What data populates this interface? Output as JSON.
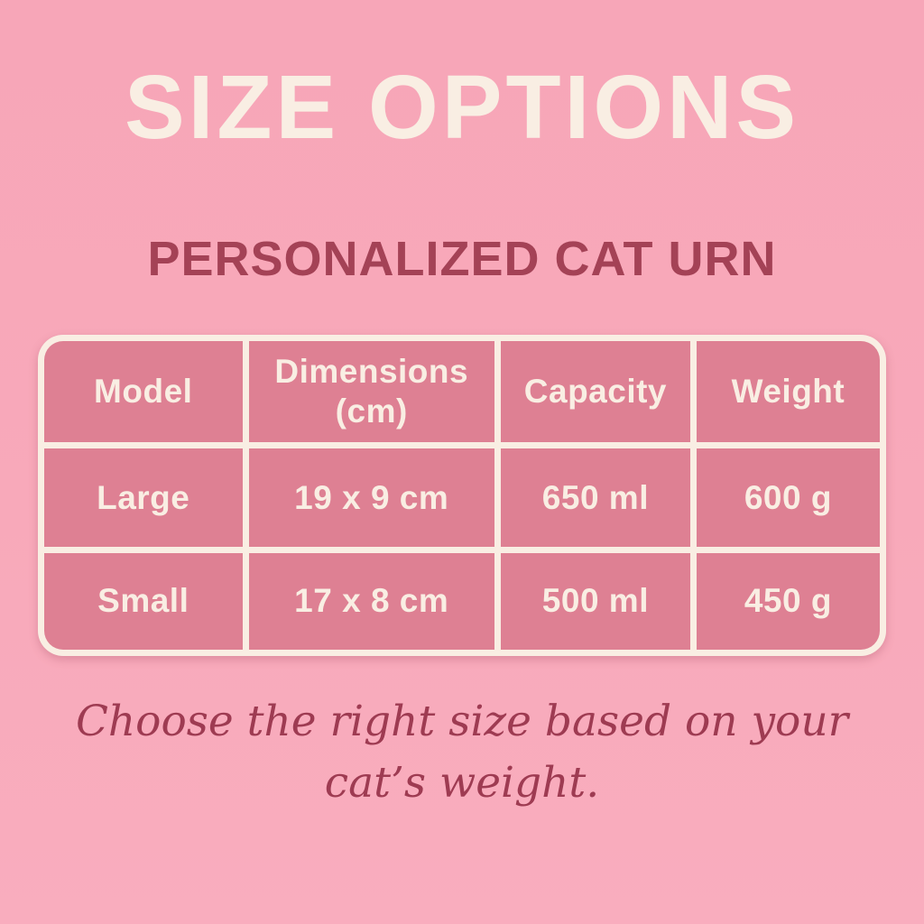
{
  "page": {
    "title": "SIZE OPTIONS",
    "subtitle": "PERSONALIZED CAT URN",
    "caption_line1": "Choose the right size based on your",
    "caption_line2": "cat’s weight."
  },
  "table": {
    "columns": [
      {
        "label": "Model",
        "sub": ""
      },
      {
        "label": "Dimensions",
        "sub": "(cm)"
      },
      {
        "label": "Capacity",
        "sub": ""
      },
      {
        "label": "Weight",
        "sub": ""
      }
    ],
    "rows": [
      [
        "Large",
        "19 x 9 cm",
        "650 ml",
        "600 g"
      ],
      [
        "Small",
        "17 x 8 cm",
        "500 ml",
        "450 g"
      ]
    ]
  },
  "chart_data": {
    "type": "table",
    "title": "SIZE OPTIONS",
    "subtitle": "PERSONALIZED CAT URN",
    "columns": [
      "Model",
      "Dimensions (cm)",
      "Capacity",
      "Weight"
    ],
    "rows": [
      {
        "model": "Large",
        "dimensions_cm": "19 x 9 cm",
        "capacity_ml": 650,
        "weight_g": 600
      },
      {
        "model": "Small",
        "dimensions_cm": "17 x 8 cm",
        "capacity_ml": 500,
        "weight_g": 450
      }
    ],
    "note": "Choose the right size based on your cat’s weight."
  },
  "colors": {
    "background_pink": "#f8a9ba",
    "cell_pink": "#de8093",
    "cream": "#f9eee3",
    "maroon_text": "#a44256",
    "caption_maroon": "#9e3b52"
  }
}
